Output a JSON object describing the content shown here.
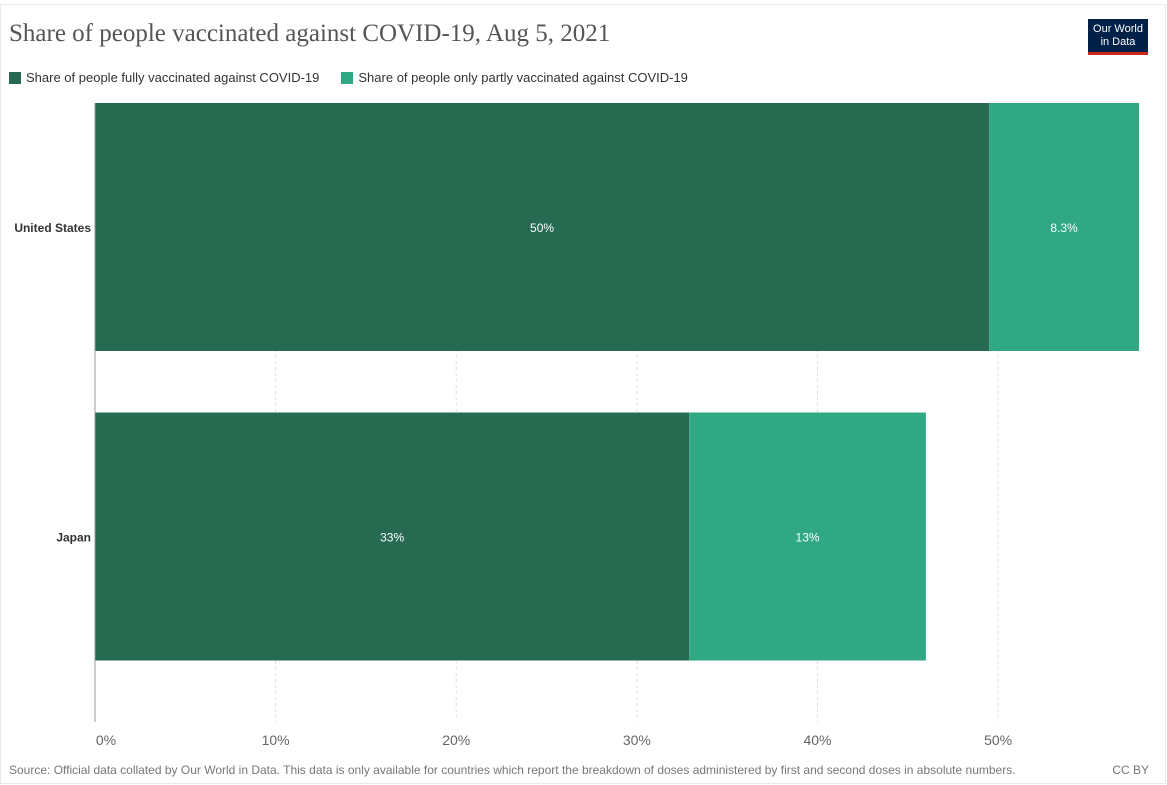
{
  "title": "Share of people vaccinated against COVID-19, Aug 5, 2021",
  "logo": {
    "line1": "Our World",
    "line2": "in Data"
  },
  "colors": {
    "fully": "#276a52",
    "partly": "#2fa883",
    "grid": "#dddddd",
    "axis": "#999999",
    "text": "#555555",
    "bar_label": "#ffffff"
  },
  "chart_data": {
    "type": "bar",
    "orientation": "horizontal",
    "stacked": true,
    "categories": [
      "United States",
      "Japan"
    ],
    "series": [
      {
        "name": "Share of people fully vaccinated against COVID-19",
        "values": [
          49.5,
          32.9
        ],
        "labels": [
          "50%",
          "33%"
        ]
      },
      {
        "name": "Share of people only partly vaccinated against COVID-19",
        "values": [
          8.3,
          13.1
        ],
        "labels": [
          "8.3%",
          "13%"
        ]
      }
    ],
    "xlim": [
      0,
      57.8
    ],
    "xticks": [
      0,
      10,
      20,
      30,
      40,
      50
    ],
    "xtick_labels": [
      "0%",
      "10%",
      "20%",
      "30%",
      "40%",
      "50%"
    ],
    "grid": true,
    "legend": "top-left"
  },
  "footer": {
    "source": "Source: Official data collated by Our World in Data. This data is only available for countries which report the breakdown of doses administered by first and second doses in absolute numbers.",
    "license": "CC BY"
  }
}
